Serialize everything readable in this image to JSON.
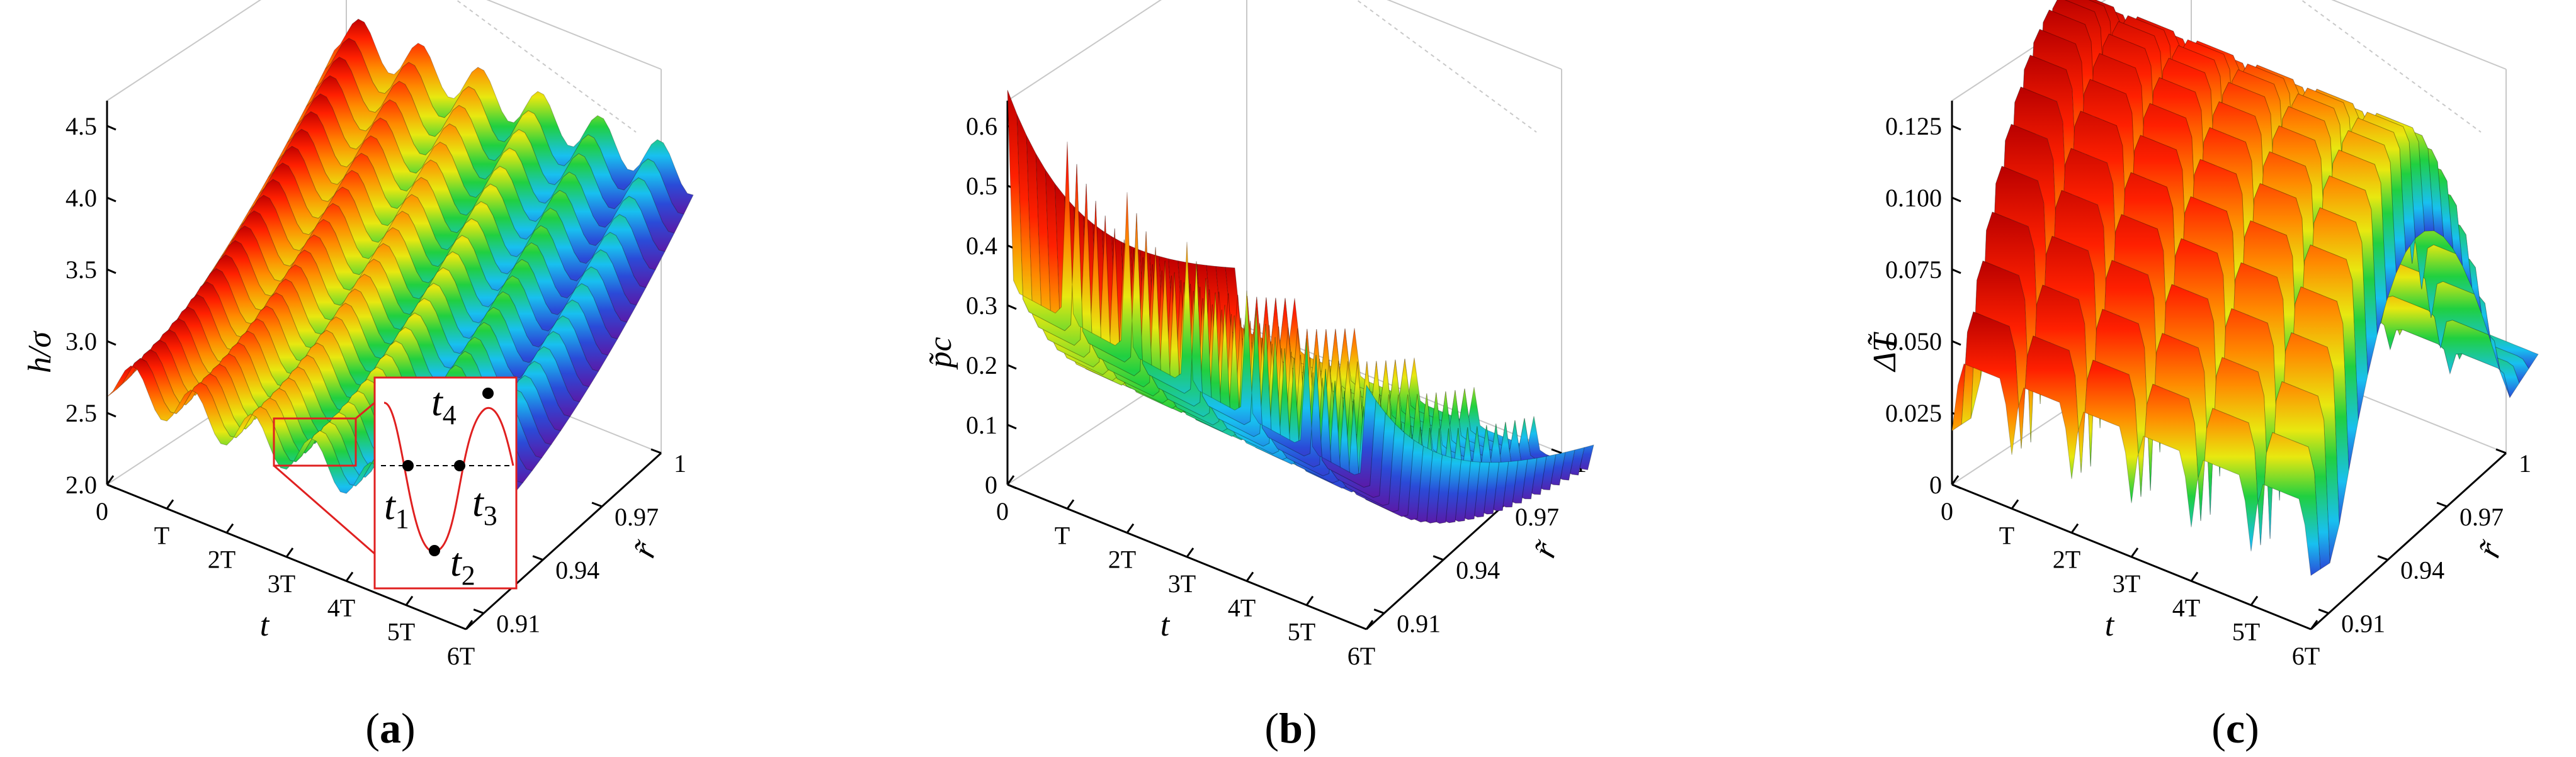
{
  "chart_data": [
    {
      "type": "surface3d",
      "panel": "a",
      "caption_open": "(",
      "caption_letter": "a",
      "caption_close": ")",
      "zlabel": "h/σ",
      "xlabel": "t",
      "ylabel": "r̃",
      "z_ticks": [
        "2.0",
        "2.5",
        "3.0",
        "3.5",
        "4.0",
        "4.5"
      ],
      "x_ticks": [
        "0",
        "T",
        "2T",
        "3T",
        "4T",
        "5T",
        "6T"
      ],
      "y_ticks": [
        "0.91",
        "0.94",
        "0.97",
        "1"
      ],
      "zlim": [
        2.0,
        4.5
      ],
      "xlim": [
        0,
        6
      ],
      "ylim": [
        0.9,
        1.0
      ],
      "inset": {
        "points": [
          {
            "label": "t",
            "sub": "1"
          },
          {
            "label": "t",
            "sub": "2"
          },
          {
            "label": "t",
            "sub": "3"
          },
          {
            "label": "t",
            "sub": "4"
          }
        ]
      }
    },
    {
      "type": "surface3d",
      "panel": "b",
      "caption_open": "(",
      "caption_letter": "b",
      "caption_close": ")",
      "zlabel": "p̃c",
      "xlabel": "t",
      "ylabel": "r̃",
      "z_ticks": [
        "0",
        "0.1",
        "0.2",
        "0.3",
        "0.4",
        "0.5",
        "0.6"
      ],
      "x_ticks": [
        "0",
        "T",
        "2T",
        "3T",
        "4T",
        "5T",
        "6T"
      ],
      "y_ticks": [
        "0.91",
        "0.94",
        "0.97",
        "1"
      ],
      "zlim": [
        0,
        0.6
      ],
      "xlim": [
        0,
        6
      ],
      "ylim": [
        0.9,
        1.0
      ]
    },
    {
      "type": "surface3d",
      "panel": "c",
      "caption_open": "(",
      "caption_letter": "c",
      "caption_close": ")",
      "zlabel": "ΔT̃",
      "xlabel": "t",
      "ylabel": "r̃",
      "z_ticks": [
        "0",
        "0.025",
        "0.050",
        "0.075",
        "0.100",
        "0.125"
      ],
      "x_ticks": [
        "0",
        "T",
        "2T",
        "3T",
        "4T",
        "5T",
        "6T"
      ],
      "y_ticks": [
        "0.91",
        "0.94",
        "0.97",
        "1"
      ],
      "zlim": [
        0,
        0.125
      ],
      "xlim": [
        0,
        6
      ],
      "ylim": [
        0.9,
        1.0
      ]
    }
  ]
}
